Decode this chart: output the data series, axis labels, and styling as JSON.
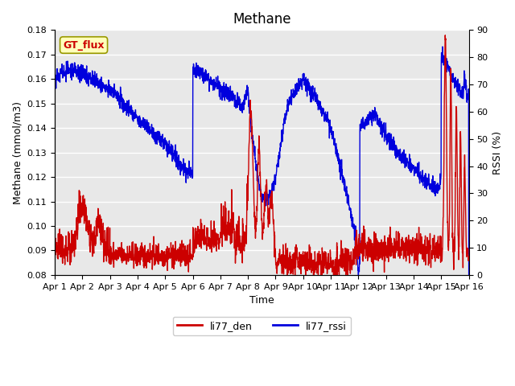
{
  "title": "Methane",
  "ylabel_left": "Methane (mmol/m3)",
  "ylabel_right": "RSSI (%)",
  "xlabel": "Time",
  "ylim_left": [
    0.08,
    0.18
  ],
  "ylim_right": [
    0,
    90
  ],
  "xlim": [
    0,
    15
  ],
  "xtick_labels": [
    "Apr 1",
    "Apr 2",
    "Apr 3",
    "Apr 4",
    "Apr 5",
    "Apr 6",
    "Apr 7",
    "Apr 8",
    "Apr 9",
    "Apr 10",
    "Apr 11",
    "Apr 12",
    "Apr 13",
    "Apr 14",
    "Apr 15",
    "Apr 16"
  ],
  "yticks_left": [
    0.08,
    0.09,
    0.1,
    0.11,
    0.12,
    0.13,
    0.14,
    0.15,
    0.16,
    0.17,
    0.18
  ],
  "yticks_right_labeled": [
    0,
    10,
    20,
    30,
    40,
    50,
    60,
    70,
    80,
    90
  ],
  "line1_color": "#CC0000",
  "line2_color": "#0000DD",
  "line1_label": "li77_den",
  "line2_label": "li77_rssi",
  "annotation_text": "GT_flux",
  "annotation_bg": "#FFFFBB",
  "annotation_border": "#999900",
  "background_color": "#E8E8E8",
  "title_fontsize": 12,
  "axis_fontsize": 9,
  "tick_fontsize": 8,
  "legend_fontsize": 9,
  "linewidth": 1.0
}
